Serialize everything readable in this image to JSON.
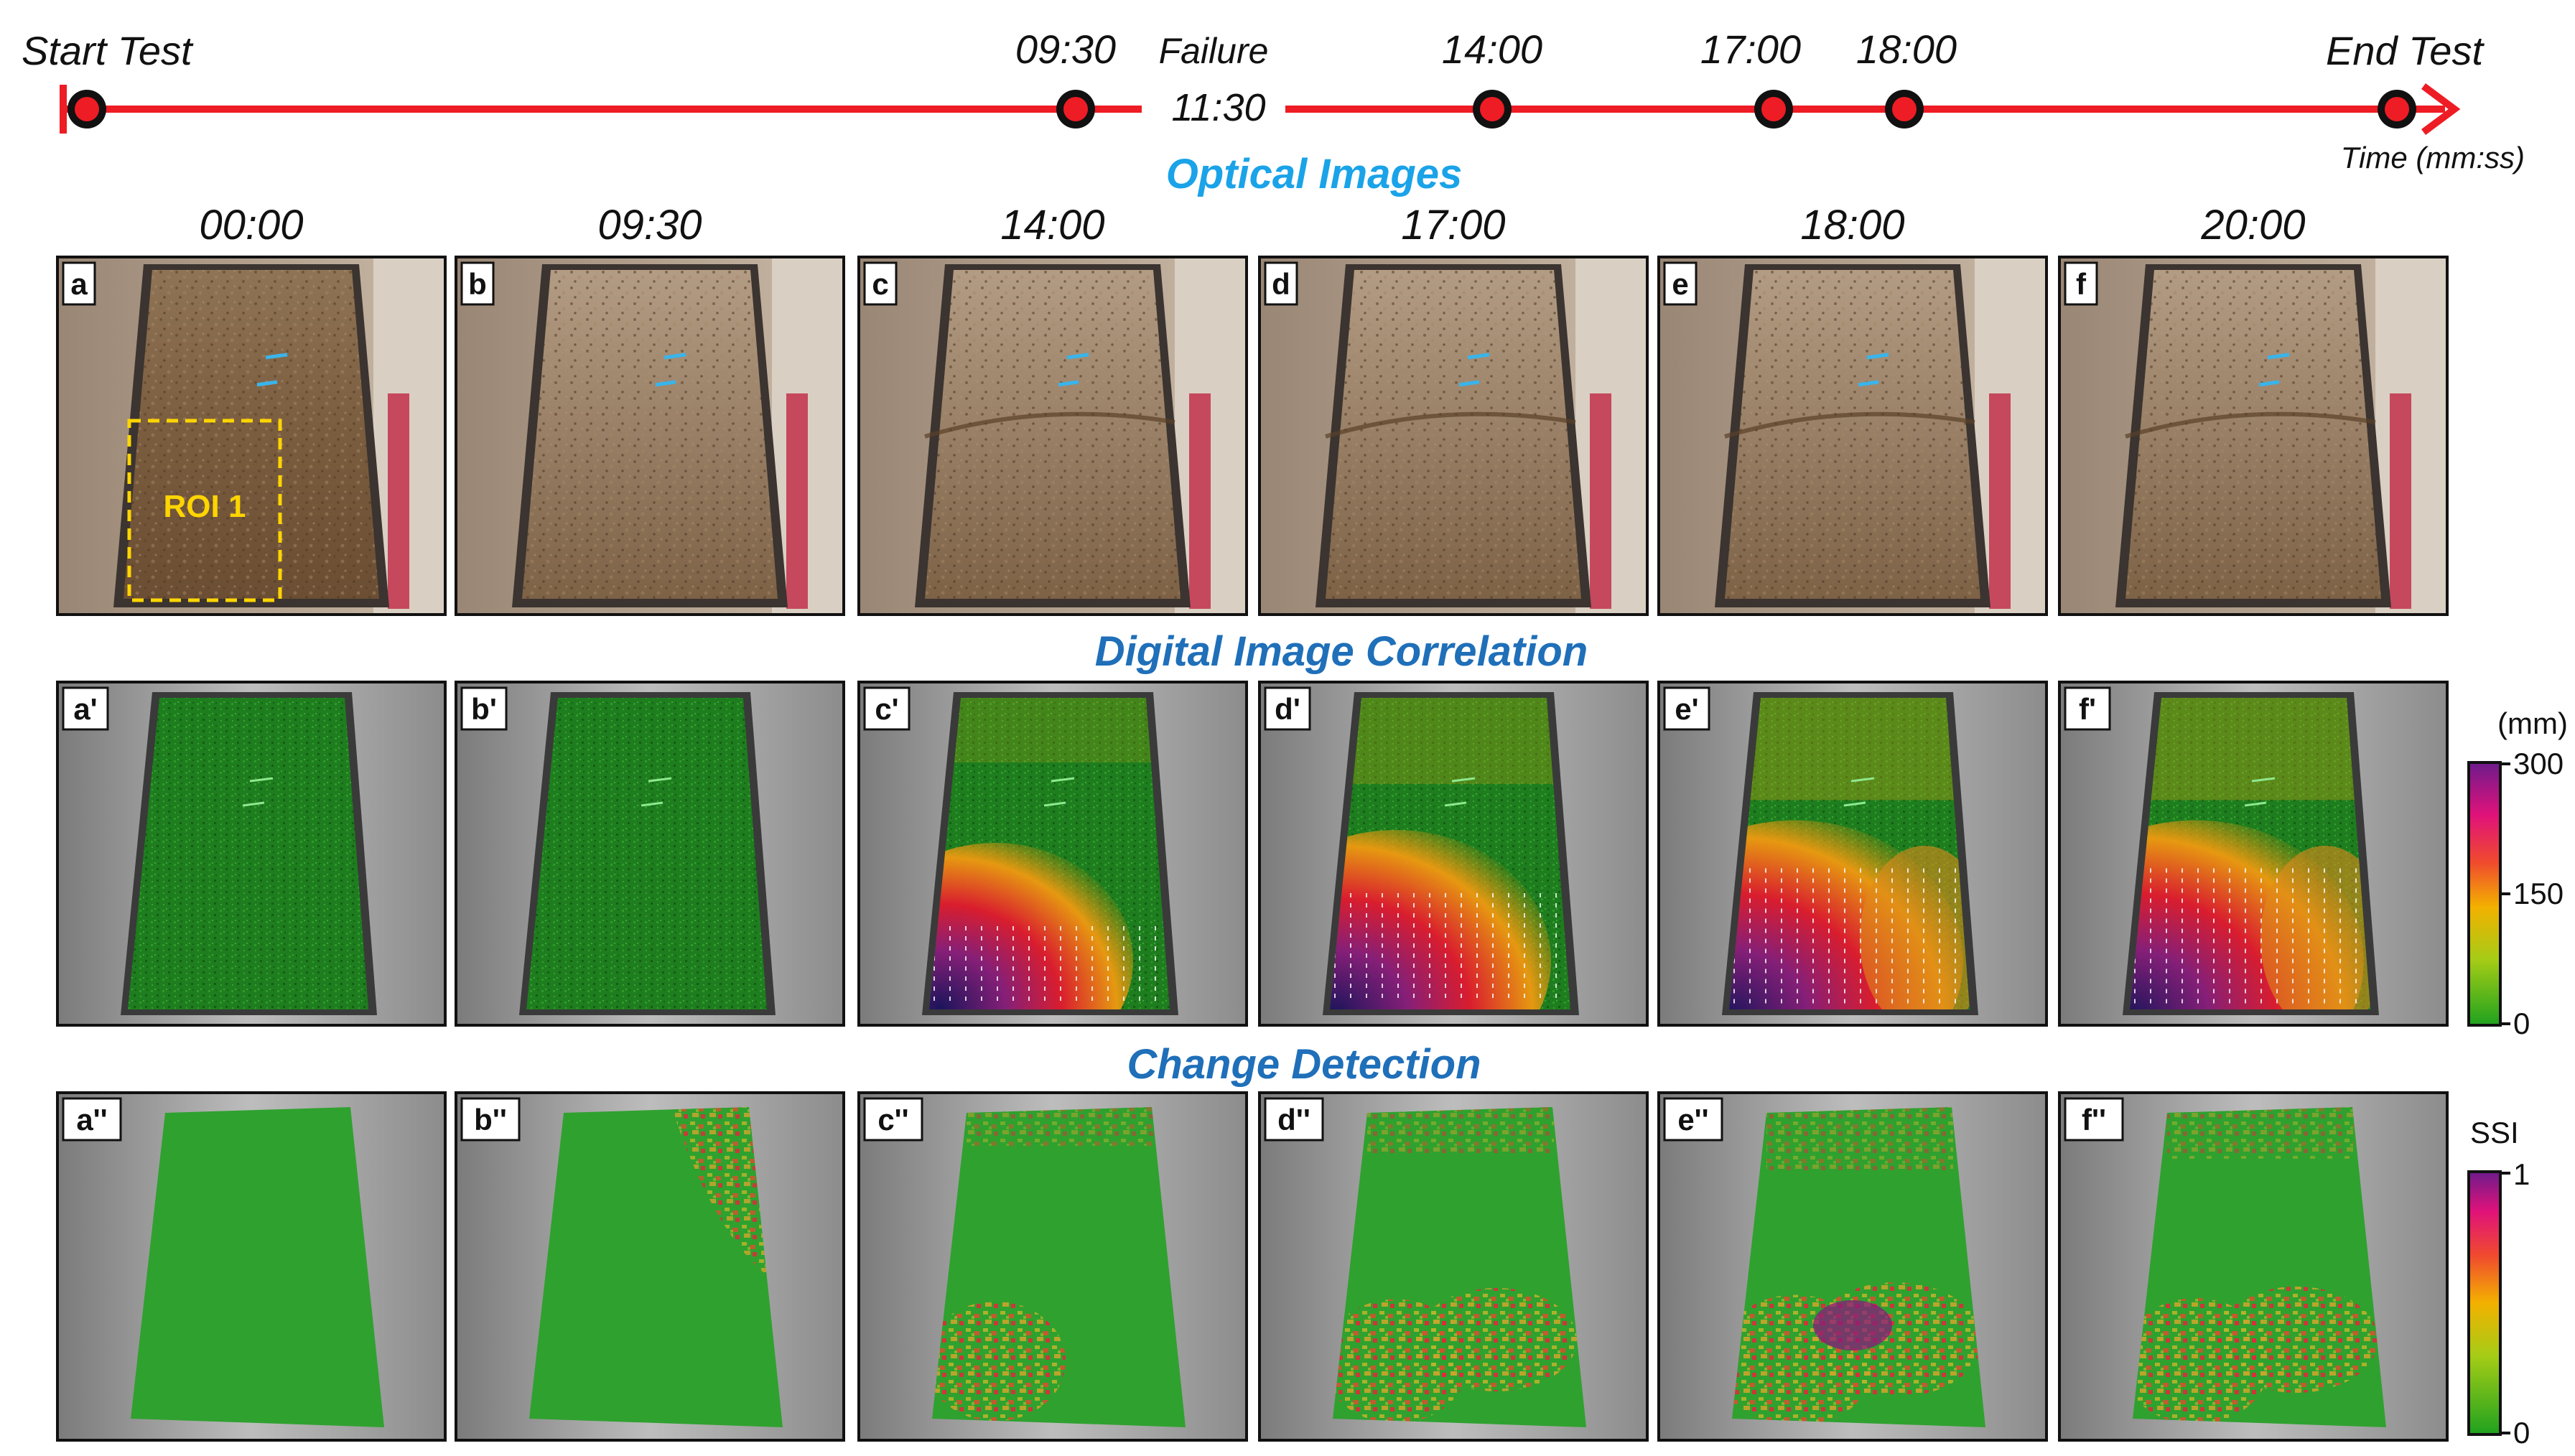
{
  "timeline": {
    "start_label": "Start Test",
    "end_label": "End Test",
    "failure_label": "Failure",
    "failure_time": "11:30",
    "axis_label": "Time (mm:ss)",
    "marker_labels": [
      "09:30",
      "14:00",
      "17:00",
      "18:00"
    ],
    "color": "#ee1c24"
  },
  "sections": {
    "optical": "Optical Images",
    "dic": "Digital Image Correlation",
    "change": "Change Detection"
  },
  "section_colors": {
    "optical": "#1aa3e8",
    "dic": "#1f6fb9",
    "change": "#1f6fb9"
  },
  "column_times": [
    "00:00",
    "09:30",
    "14:00",
    "17:00",
    "18:00",
    "20:00"
  ],
  "rows": {
    "optical": {
      "labels": [
        "a",
        "b",
        "c",
        "d",
        "e",
        "f"
      ]
    },
    "dic": {
      "labels": [
        "a'",
        "b'",
        "c'",
        "d'",
        "e'",
        "f'"
      ],
      "displacement_levels": [
        0.0,
        0.02,
        0.6,
        0.8,
        0.95,
        0.95
      ]
    },
    "change": {
      "labels": [
        "a''",
        "b''",
        "c''",
        "d''",
        "e''",
        "f''"
      ],
      "change_levels": [
        0.0,
        0.35,
        0.45,
        0.55,
        0.75,
        0.6
      ]
    }
  },
  "roi_label": "ROI 1",
  "roi_color": "#ffd500",
  "colorbars": {
    "dic": {
      "unit": "(mm)",
      "ticks": [
        "300",
        "150",
        "0"
      ]
    },
    "ssi": {
      "unit": "SSI",
      "ticks": [
        "1",
        "0"
      ]
    }
  }
}
